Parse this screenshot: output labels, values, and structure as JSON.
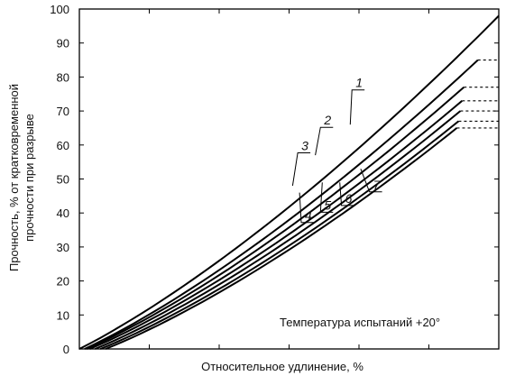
{
  "chart_data": {
    "type": "line",
    "ylabel_line1": "Прочность, % от кратковременной",
    "ylabel_line2": "прочности при разрыве",
    "xlabel": "Относительное удлинение, %",
    "annotation": "Температура испытаний +20°",
    "ylim": [
      0,
      100
    ],
    "xlim": [
      0,
      12
    ],
    "x_ticks": [
      0,
      2,
      4,
      6,
      8,
      10,
      12
    ],
    "y_ticks": [
      0,
      10,
      20,
      30,
      40,
      50,
      60,
      70,
      80,
      90,
      100
    ],
    "y_tick_labels": [
      "0",
      "10",
      "20",
      "30",
      "40",
      "50",
      "60",
      "70",
      "80",
      "90",
      "100"
    ],
    "grid": false,
    "series": [
      {
        "name": "",
        "start_x": 0.0,
        "end": [
          12.0,
          98
        ],
        "plateau": null,
        "color": "#000000"
      },
      {
        "name": "1",
        "start_x": 0.15,
        "end": [
          11.4,
          85
        ],
        "plateau": [
          11.4,
          12.0,
          85
        ],
        "color": "#000000"
      },
      {
        "name": "2",
        "start_x": 0.2,
        "end": [
          11.0,
          77
        ],
        "plateau": [
          11.0,
          12.0,
          77
        ],
        "color": "#000000"
      },
      {
        "name": "3",
        "start_x": 0.3,
        "end": [
          10.95,
          73
        ],
        "plateau": [
          10.95,
          12.0,
          73
        ],
        "color": "#000000"
      },
      {
        "name": "4",
        "start_x": 0.45,
        "end": [
          10.9,
          70
        ],
        "plateau": [
          10.9,
          12.0,
          70
        ],
        "color": "#000000"
      },
      {
        "name": "5",
        "start_x": 0.6,
        "end": [
          10.85,
          67
        ],
        "plateau": [
          10.85,
          12.0,
          67
        ],
        "color": "#000000"
      },
      {
        "name": "6",
        "start_x": 0.75,
        "end": [
          10.8,
          65
        ],
        "plateau": [
          10.8,
          12.0,
          65
        ],
        "color": "#000000"
      }
    ],
    "curve_labels": [
      {
        "text": "1",
        "x": 7.85,
        "y": 77,
        "anchor": [
          7.75,
          66
        ]
      },
      {
        "text": "2",
        "x": 6.95,
        "y": 66,
        "anchor": [
          6.75,
          57
        ]
      },
      {
        "text": "3",
        "x": 6.3,
        "y": 58.5,
        "anchor": [
          6.1,
          48
        ]
      },
      {
        "text": "4",
        "x": 6.4,
        "y": 38,
        "anchor": [
          6.3,
          46
        ]
      },
      {
        "text": "5",
        "x": 6.95,
        "y": 41,
        "anchor": [
          6.95,
          49
        ]
      },
      {
        "text": "6",
        "x": 7.55,
        "y": 43,
        "anchor": [
          7.45,
          49
        ]
      },
      {
        "text": "7",
        "x": 8.35,
        "y": 47,
        "anchor": [
          8.05,
          53
        ]
      }
    ]
  }
}
